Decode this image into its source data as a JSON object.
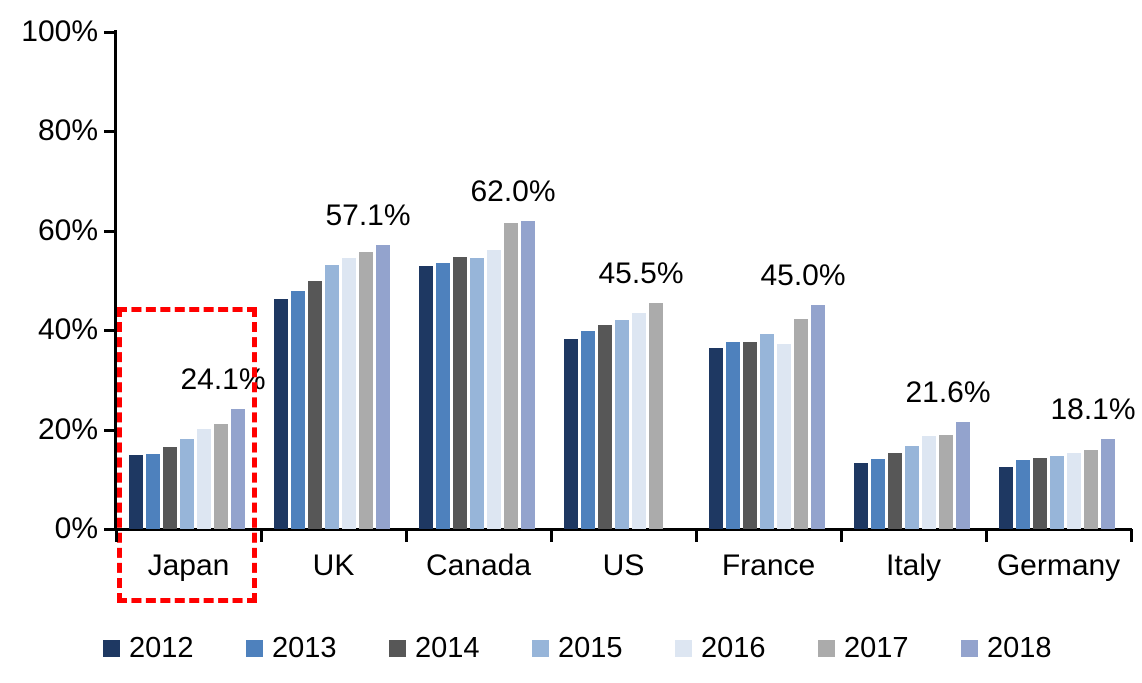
{
  "chart_data": {
    "type": "bar",
    "title": "",
    "xlabel": "",
    "ylabel": "",
    "categories": [
      "Japan",
      "UK",
      "Canada",
      "US",
      "France",
      "Italy",
      "Germany"
    ],
    "series": [
      {
        "name": "2012",
        "color": "#1E3862",
        "values": [
          14.8,
          46.3,
          53.0,
          38.2,
          36.5,
          13.2,
          12.4
        ]
      },
      {
        "name": "2013",
        "color": "#4E81BD",
        "values": [
          15.0,
          47.8,
          53.5,
          39.9,
          37.6,
          14.1,
          13.9
        ]
      },
      {
        "name": "2014",
        "color": "#575757",
        "values": [
          16.5,
          50.0,
          54.8,
          41.0,
          37.6,
          15.2,
          14.3
        ]
      },
      {
        "name": "2015",
        "color": "#97B5D9",
        "values": [
          18.2,
          53.2,
          54.6,
          42.1,
          39.2,
          16.8,
          14.7
        ]
      },
      {
        "name": "2016",
        "color": "#DDE6F2",
        "values": [
          20.2,
          54.6,
          56.2,
          43.4,
          37.3,
          18.8,
          15.3
        ]
      },
      {
        "name": "2017",
        "color": "#ABABAB",
        "values": [
          21.2,
          55.7,
          61.5,
          45.5,
          42.3,
          19.0,
          15.8
        ]
      },
      {
        "name": "2018",
        "color": "#93A3CD",
        "values": [
          24.1,
          57.1,
          62.0,
          null,
          45.0,
          21.6,
          18.1
        ]
      }
    ],
    "data_labels": [
      "24.1%",
      "57.1%",
      "62.0%",
      "45.5%",
      "45.0%",
      "21.6%",
      "18.1%"
    ],
    "y_axis": {
      "min": 0,
      "max": 100,
      "tick_step": 20,
      "tick_labels": [
        "0%",
        "20%",
        "40%",
        "60%",
        "80%",
        "100%"
      ]
    },
    "grid": false,
    "legend_position": "bottom",
    "legend_labels": [
      "2012",
      "2013",
      "2014",
      "2015",
      "2016",
      "2017",
      "2018"
    ],
    "highlight": {
      "category": "Japan",
      "shape": "dashed-rectangle",
      "color": "#FF0000"
    }
  }
}
